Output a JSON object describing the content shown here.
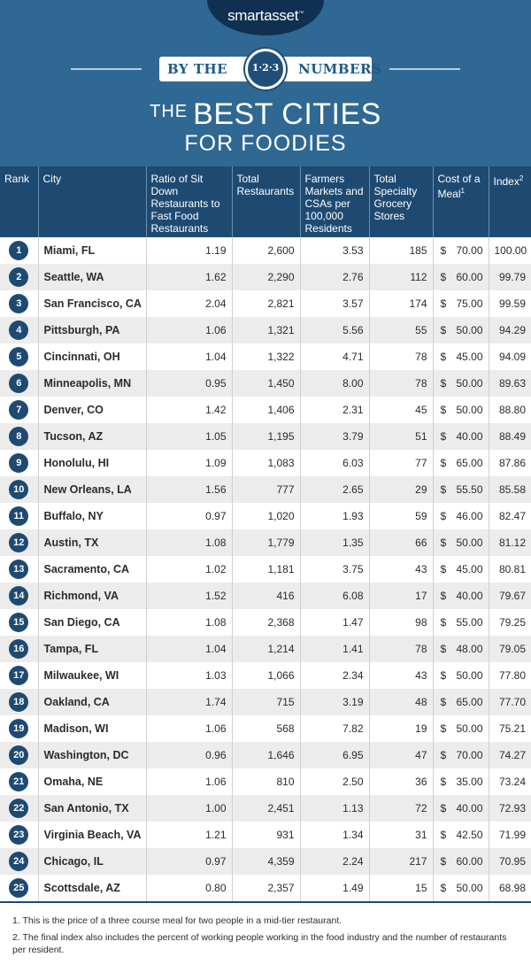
{
  "header": {
    "brand": "smartasset",
    "brand_mark": "™",
    "banner_left": "BY THE",
    "banner_badge": "1·2·3",
    "banner_right": "NUMBERS",
    "title_small": "THE",
    "title_large": "BEST CITIES",
    "title_line2": "FOR FOODIES",
    "colors": {
      "background": "#2f6892",
      "header_row": "#1e4a72",
      "stripe": "#ececec"
    }
  },
  "columns": {
    "rank": "Rank",
    "city": "City",
    "ratio": "Ratio of Sit Down Restaurants to Fast Food Restaurants",
    "total_restaurants": "Total Restaurants",
    "farmers": "Farmers Markets and CSAs per 100,000 Residents",
    "grocery": "Total Specialty Grocery Stores",
    "cost": "Cost of a Meal",
    "cost_note": "1",
    "index": "Index",
    "index_note": "2"
  },
  "currency": "$",
  "rows": [
    {
      "rank": "1",
      "city": "Miami, FL",
      "ratio": "1.19",
      "restaurants": "2,600",
      "farmers": "3.53",
      "grocery": "185",
      "cost": "70.00",
      "index": "100.00"
    },
    {
      "rank": "2",
      "city": "Seattle, WA",
      "ratio": "1.62",
      "restaurants": "2,290",
      "farmers": "2.76",
      "grocery": "112",
      "cost": "60.00",
      "index": "99.79"
    },
    {
      "rank": "3",
      "city": "San Francisco, CA",
      "ratio": "2.04",
      "restaurants": "2,821",
      "farmers": "3.57",
      "grocery": "174",
      "cost": "75.00",
      "index": "99.59"
    },
    {
      "rank": "4",
      "city": "Pittsburgh, PA",
      "ratio": "1.06",
      "restaurants": "1,321",
      "farmers": "5.56",
      "grocery": "55",
      "cost": "50.00",
      "index": "94.29"
    },
    {
      "rank": "5",
      "city": "Cincinnati, OH",
      "ratio": "1.04",
      "restaurants": "1,322",
      "farmers": "4.71",
      "grocery": "78",
      "cost": "45.00",
      "index": "94.09"
    },
    {
      "rank": "6",
      "city": "Minneapolis, MN",
      "ratio": "0.95",
      "restaurants": "1,450",
      "farmers": "8.00",
      "grocery": "78",
      "cost": "50.00",
      "index": "89.63"
    },
    {
      "rank": "7",
      "city": "Denver, CO",
      "ratio": "1.42",
      "restaurants": "1,406",
      "farmers": "2.31",
      "grocery": "45",
      "cost": "50.00",
      "index": "88.80"
    },
    {
      "rank": "8",
      "city": "Tucson, AZ",
      "ratio": "1.05",
      "restaurants": "1,195",
      "farmers": "3.79",
      "grocery": "51",
      "cost": "40.00",
      "index": "88.49"
    },
    {
      "rank": "9",
      "city": "Honolulu, HI",
      "ratio": "1.09",
      "restaurants": "1,083",
      "farmers": "6.03",
      "grocery": "77",
      "cost": "65.00",
      "index": "87.86"
    },
    {
      "rank": "10",
      "city": "New Orleans, LA",
      "ratio": "1.56",
      "restaurants": "777",
      "farmers": "2.65",
      "grocery": "29",
      "cost": "55.50",
      "index": "85.58"
    },
    {
      "rank": "11",
      "city": "Buffalo, NY",
      "ratio": "0.97",
      "restaurants": "1,020",
      "farmers": "1.93",
      "grocery": "59",
      "cost": "46.00",
      "index": "82.47"
    },
    {
      "rank": "12",
      "city": "Austin, TX",
      "ratio": "1.08",
      "restaurants": "1,779",
      "farmers": "1.35",
      "grocery": "66",
      "cost": "50.00",
      "index": "81.12"
    },
    {
      "rank": "13",
      "city": "Sacramento, CA",
      "ratio": "1.02",
      "restaurants": "1,181",
      "farmers": "3.75",
      "grocery": "43",
      "cost": "45.00",
      "index": "80.81"
    },
    {
      "rank": "14",
      "city": "Richmond, VA",
      "ratio": "1.52",
      "restaurants": "416",
      "farmers": "6.08",
      "grocery": "17",
      "cost": "40.00",
      "index": "79.67"
    },
    {
      "rank": "15",
      "city": "San Diego, CA",
      "ratio": "1.08",
      "restaurants": "2,368",
      "farmers": "1.47",
      "grocery": "98",
      "cost": "55.00",
      "index": "79.25"
    },
    {
      "rank": "16",
      "city": "Tampa, FL",
      "ratio": "1.04",
      "restaurants": "1,214",
      "farmers": "1.41",
      "grocery": "78",
      "cost": "48.00",
      "index": "79.05"
    },
    {
      "rank": "17",
      "city": "Milwaukee, WI",
      "ratio": "1.03",
      "restaurants": "1,066",
      "farmers": "2.34",
      "grocery": "43",
      "cost": "50.00",
      "index": "77.80"
    },
    {
      "rank": "18",
      "city": "Oakland, CA",
      "ratio": "1.74",
      "restaurants": "715",
      "farmers": "3.19",
      "grocery": "48",
      "cost": "65.00",
      "index": "77.70"
    },
    {
      "rank": "19",
      "city": "Madison, WI",
      "ratio": "1.06",
      "restaurants": "568",
      "farmers": "7.82",
      "grocery": "19",
      "cost": "50.00",
      "index": "75.21"
    },
    {
      "rank": "20",
      "city": "Washington, DC",
      "ratio": "0.96",
      "restaurants": "1,646",
      "farmers": "6.95",
      "grocery": "47",
      "cost": "70.00",
      "index": "74.27"
    },
    {
      "rank": "21",
      "city": "Omaha, NE",
      "ratio": "1.06",
      "restaurants": "810",
      "farmers": "2.50",
      "grocery": "36",
      "cost": "35.00",
      "index": "73.24"
    },
    {
      "rank": "22",
      "city": "San Antonio, TX",
      "ratio": "1.00",
      "restaurants": "2,451",
      "farmers": "1.13",
      "grocery": "72",
      "cost": "40.00",
      "index": "72.93"
    },
    {
      "rank": "23",
      "city": "Virginia Beach, VA",
      "ratio": "1.21",
      "restaurants": "931",
      "farmers": "1.34",
      "grocery": "31",
      "cost": "42.50",
      "index": "71.99"
    },
    {
      "rank": "24",
      "city": "Chicago, IL",
      "ratio": "0.97",
      "restaurants": "4,359",
      "farmers": "2.24",
      "grocery": "217",
      "cost": "60.00",
      "index": "70.95"
    },
    {
      "rank": "25",
      "city": "Scottsdale, AZ",
      "ratio": "0.80",
      "restaurants": "2,357",
      "farmers": "1.49",
      "grocery": "15",
      "cost": "50.00",
      "index": "68.98"
    }
  ],
  "footnotes": [
    "1. This is the price of a three course meal for two people in a mid-tier restaurant.",
    "2. The final index also includes the percent of working people working in the food industry and the number of restaurants per resident."
  ]
}
